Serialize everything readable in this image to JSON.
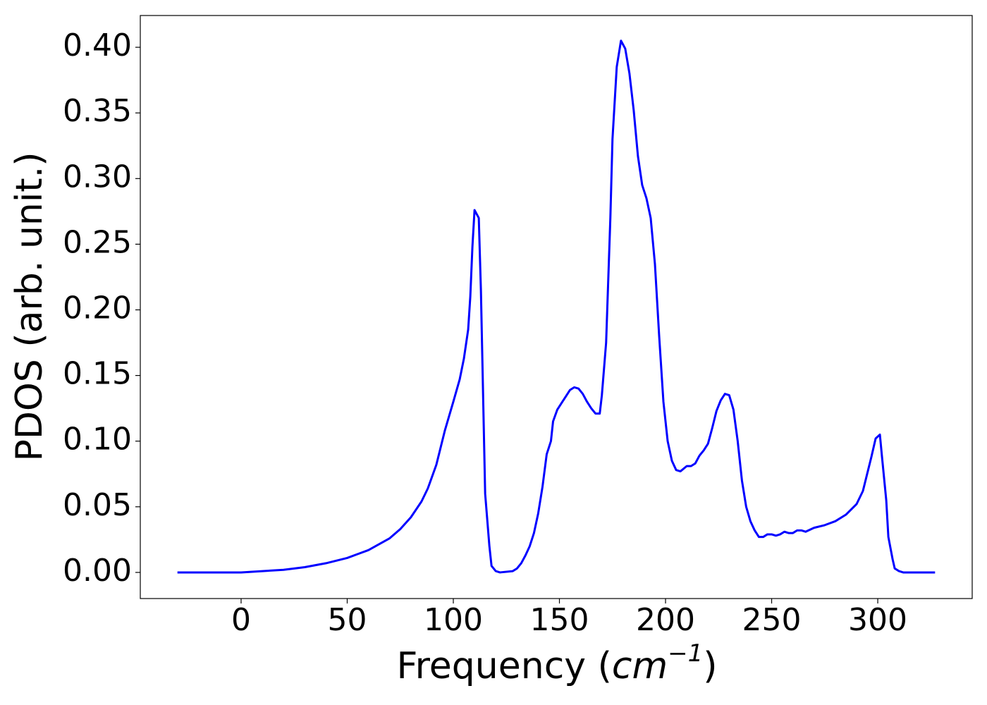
{
  "chart_data": {
    "type": "line",
    "xlabel": [
      "Frequency (",
      "cm",
      "−1",
      ")"
    ],
    "ylabel": "PDOS (arb. unit.)",
    "xlim": [
      -47.5,
      344.5
    ],
    "ylim": [
      -0.0199,
      0.4242
    ],
    "xticks": [
      0,
      50,
      100,
      150,
      200,
      250,
      300
    ],
    "yticks": [
      {
        "value": 0,
        "label": "0.00"
      },
      {
        "value": 0.05,
        "label": "0.05"
      },
      {
        "value": 0.1,
        "label": "0.10"
      },
      {
        "value": 0.15,
        "label": "0.15"
      },
      {
        "value": 0.2,
        "label": "0.20"
      },
      {
        "value": 0.25,
        "label": "0.25"
      },
      {
        "value": 0.3,
        "label": "0.30"
      },
      {
        "value": 0.35,
        "label": "0.35"
      },
      {
        "value": 0.4,
        "label": "0.40"
      }
    ],
    "x": [
      -30,
      0,
      10,
      20,
      30,
      40,
      50,
      60,
      70,
      75,
      80,
      85,
      88,
      92,
      96,
      100,
      103,
      105,
      107,
      108,
      109,
      110,
      112,
      113,
      115,
      117,
      118,
      120,
      122,
      128,
      130,
      132,
      134,
      136,
      138,
      140,
      142,
      144,
      146,
      147,
      149,
      151,
      153,
      155,
      157,
      159,
      161,
      163,
      165,
      167,
      169,
      170,
      172,
      174,
      175,
      177,
      179,
      181,
      183,
      185,
      187,
      189,
      191,
      193,
      195,
      197,
      199,
      201,
      203,
      205,
      207,
      210,
      212,
      214,
      216,
      218,
      220,
      222,
      224,
      226,
      228,
      230,
      232,
      234,
      236,
      238,
      240,
      242,
      244,
      246,
      248,
      250,
      252,
      254,
      256,
      258,
      260,
      262,
      264,
      266,
      270,
      275,
      280,
      285,
      290,
      293,
      295,
      297,
      299,
      301,
      302,
      304,
      305,
      307,
      308,
      310,
      312,
      327
    ],
    "series": [
      {
        "color": "#0000ff",
        "values": [
          0,
          0,
          0.001,
          0.002,
          0.004,
          0.007,
          0.011,
          0.017,
          0.026,
          0.033,
          0.042,
          0.054,
          0.064,
          0.082,
          0.108,
          0.13,
          0.147,
          0.163,
          0.185,
          0.21,
          0.248,
          0.276,
          0.27,
          0.215,
          0.06,
          0.02,
          0.005,
          0.001,
          0,
          0.001,
          0.003,
          0.007,
          0.013,
          0.02,
          0.03,
          0.045,
          0.065,
          0.09,
          0.1,
          0.115,
          0.124,
          0.129,
          0.134,
          0.139,
          0.141,
          0.14,
          0.136,
          0.13,
          0.125,
          0.121,
          0.121,
          0.135,
          0.175,
          0.27,
          0.33,
          0.385,
          0.405,
          0.399,
          0.38,
          0.352,
          0.317,
          0.295,
          0.285,
          0.27,
          0.235,
          0.18,
          0.13,
          0.1,
          0.085,
          0.078,
          0.077,
          0.081,
          0.081,
          0.083,
          0.089,
          0.093,
          0.098,
          0.11,
          0.123,
          0.131,
          0.136,
          0.135,
          0.124,
          0.1,
          0.07,
          0.05,
          0.039,
          0.032,
          0.027,
          0.027,
          0.029,
          0.029,
          0.028,
          0.029,
          0.031,
          0.03,
          0.03,
          0.032,
          0.032,
          0.031,
          0.034,
          0.036,
          0.039,
          0.044,
          0.052,
          0.062,
          0.075,
          0.088,
          0.102,
          0.105,
          0.088,
          0.055,
          0.027,
          0.01,
          0.003,
          0.001,
          0,
          0
        ]
      }
    ]
  }
}
